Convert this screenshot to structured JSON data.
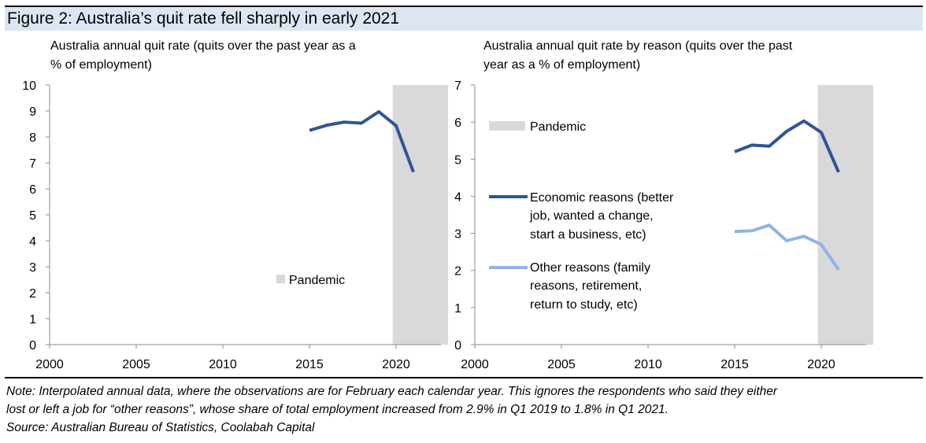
{
  "figure_title": "Figure 2: Australia’s quit rate fell sharply in early 2021",
  "colors": {
    "title_band": "#dce6f2",
    "pandemic_shade": "#d9d9d9",
    "economic_line": "#2f5597",
    "other_line": "#8eb4e3",
    "total_line": "#2f5597"
  },
  "notes": {
    "line1": "Note: Interpolated annual data, where the observations are for February each calendar year.  This ignores the respondents who said they either",
    "line2": "lost or left a job for “other reasons”, whose share of total employment increased from 2.9% in Q1 2019 to 1.8% in Q1 2021.",
    "line3": "Source: Australian Bureau of Statistics, Coolabah Capital"
  },
  "chart_data": [
    {
      "type": "line",
      "title_line1": "Australia annual quit rate (quits over the past year as a",
      "title_line2": "% of employment)",
      "xlim": [
        2000,
        2023.5
      ],
      "ylim": [
        0,
        10
      ],
      "x_ticks": [
        "2000",
        "2005",
        "2010",
        "2015",
        "2020"
      ],
      "y_ticks": [
        "0",
        "1",
        "2",
        "3",
        "4",
        "5",
        "6",
        "7",
        "8",
        "9",
        "10"
      ],
      "shaded_region": {
        "label": "Pandemic",
        "x_start": 2019.8,
        "x_end": 2023
      },
      "series": [
        {
          "name": "Quit rate",
          "x": [
            2015,
            2016,
            2017,
            2018,
            2019,
            2020,
            2021
          ],
          "y": [
            8.25,
            8.45,
            8.57,
            8.53,
            8.97,
            8.43,
            6.65
          ]
        }
      ],
      "legend": [
        {
          "label": "Pandemic"
        }
      ]
    },
    {
      "type": "line",
      "title_line1": "Australia annual quit rate by reason (quits over the past",
      "title_line2": "year as a % of employment)",
      "xlim": [
        2000,
        2023.5
      ],
      "ylim": [
        0,
        7
      ],
      "x_ticks": [
        "2000",
        "2005",
        "2010",
        "2015",
        "2020"
      ],
      "y_ticks": [
        "0",
        "1",
        "2",
        "3",
        "4",
        "5",
        "6",
        "7"
      ],
      "shaded_region": {
        "label": "Pandemic",
        "x_start": 2019.8,
        "x_end": 2023
      },
      "series": [
        {
          "name": "Economic reasons (better job, wanted a change, start a business, etc)",
          "x": [
            2015,
            2016,
            2017,
            2018,
            2019,
            2020,
            2021
          ],
          "y": [
            5.2,
            5.38,
            5.35,
            5.75,
            6.03,
            5.72,
            4.65
          ]
        },
        {
          "name": "Other reasons (family reasons, retirement, return to study, etc)",
          "x": [
            2015,
            2016,
            2017,
            2018,
            2019,
            2020,
            2021
          ],
          "y": [
            3.05,
            3.07,
            3.22,
            2.8,
            2.92,
            2.7,
            2.02
          ]
        }
      ],
      "legend": [
        {
          "label": "Pandemic"
        },
        {
          "line1": "Economic reasons (better",
          "line2": "job, wanted a change,",
          "line3": "start a business, etc)"
        },
        {
          "line1": "Other reasons (family",
          "line2": "reasons, retirement,",
          "line3": "return to study, etc)"
        }
      ]
    }
  ]
}
